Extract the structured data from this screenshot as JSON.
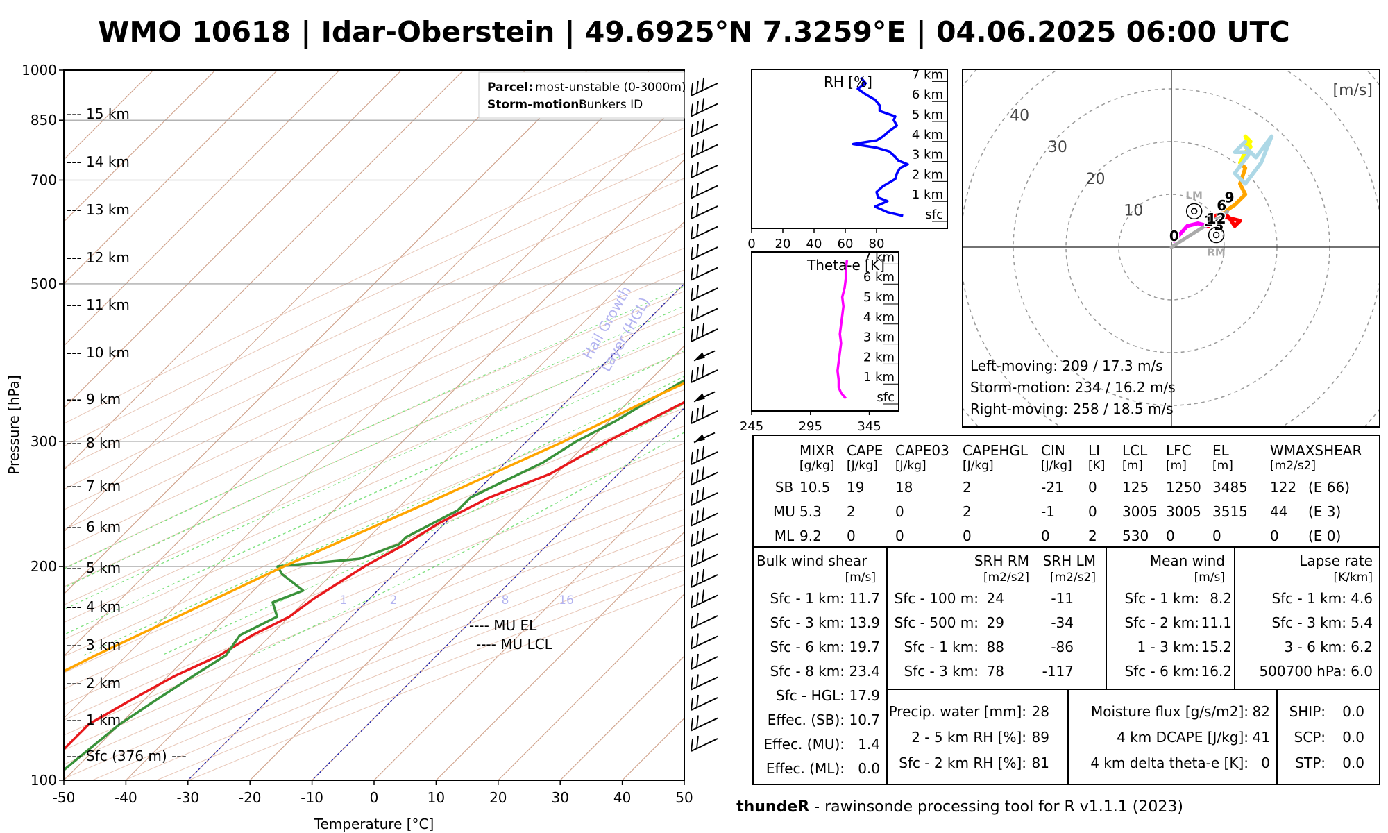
{
  "title": "WMO 10618 | Idar-Oberstein | 49.6925°N 7.3259°E | 04.06.2025 06:00 UTC",
  "footer": {
    "brand": "thundeR",
    "rest": " - rawinsonde processing tool for R v1.1.1 (2023)"
  },
  "skewt": {
    "xlabel": "Temperature [°C]",
    "ylabel": "Pressure [hPa]",
    "x_ticks": [
      -50,
      -40,
      -30,
      -20,
      -10,
      0,
      10,
      20,
      30,
      40,
      50
    ],
    "p_ticks": [
      100,
      200,
      300,
      500,
      700,
      850,
      1000
    ],
    "mixing_ratio_labels": [
      "1",
      "2",
      "8",
      "16"
    ],
    "hgl_label_1": "Hail Growth",
    "hgl_label_2": "Layer (HGL)",
    "height_labels": [
      "--- 15 km",
      "--- 14 km",
      "--- 13 km",
      "--- 12 km",
      "--- 11 km",
      "--- 10 km",
      "--- 9 km",
      "--- 8 km",
      "--- 7 km",
      "--- 6 km",
      "--- 5 km",
      "--- 4 km",
      "--- 3 km",
      "--- 2 km",
      "--- 1 km",
      "--- Sfc (376 m) ---"
    ],
    "mu_el_label": "---- MU EL",
    "mu_lcl_label": "---- MU LCL",
    "legend": {
      "parcel_key": "Parcel:",
      "parcel_val": "most-unstable (0-3000m)",
      "storm_key": "Storm-motion:",
      "storm_val": "Bunkers ID"
    }
  },
  "chart_data": [
    {
      "type": "line",
      "name": "skew-T log-P",
      "xlim": [
        -50,
        50
      ],
      "ylim": [
        1000,
        100
      ],
      "yscale": "log",
      "series": [
        {
          "name": "Temperature",
          "color": "#e8191c",
          "points": [
            [
              1000,
              17.5
            ],
            [
              950,
              16
            ],
            [
              900,
              15
            ],
            [
              850,
              14
            ],
            [
              800,
              12
            ],
            [
              750,
              11
            ],
            [
              700,
              12.5
            ],
            [
              650,
              12
            ],
            [
              600,
              12
            ],
            [
              550,
              8
            ],
            [
              500,
              4
            ],
            [
              460,
              0
            ],
            [
              420,
              -3
            ],
            [
              380,
              -8
            ],
            [
              340,
              -11
            ],
            [
              300,
              -17
            ],
            [
              270,
              -21
            ],
            [
              250,
              -27
            ],
            [
              230,
              -31
            ],
            [
              215,
              -33
            ],
            [
              200,
              -36
            ],
            [
              180,
              -39
            ],
            [
              170,
              -40
            ],
            [
              160,
              -43
            ],
            [
              150,
              -45
            ],
            [
              140,
              -49
            ],
            [
              130,
              -52
            ],
            [
              120,
              -55
            ],
            [
              110,
              -55
            ],
            [
              100,
              -55
            ]
          ]
        },
        {
          "name": "Dewpoint",
          "color": "#3a923a",
          "points": [
            [
              1000,
              13
            ],
            [
              950,
              10
            ],
            [
              900,
              9
            ],
            [
              850,
              8
            ],
            [
              800,
              6
            ],
            [
              750,
              5
            ],
            [
              700,
              5
            ],
            [
              650,
              2
            ],
            [
              600,
              -4
            ],
            [
              580,
              -9
            ],
            [
              550,
              -6
            ],
            [
              500,
              -4
            ],
            [
              470,
              -4
            ],
            [
              440,
              -6
            ],
            [
              420,
              -11
            ],
            [
              400,
              -10
            ],
            [
              380,
              -13
            ],
            [
              360,
              -15
            ],
            [
              340,
              -17
            ],
            [
              320,
              -19
            ],
            [
              300,
              -22
            ],
            [
              280,
              -24
            ],
            [
              260,
              -28
            ],
            [
              250,
              -30
            ],
            [
              240,
              -30
            ],
            [
              220,
              -34
            ],
            [
              215,
              -34
            ],
            [
              205,
              -38
            ],
            [
              200,
              -50
            ],
            [
              195,
              -48
            ],
            [
              185,
              -42
            ],
            [
              178,
              -45
            ],
            [
              170,
              -42
            ],
            [
              160,
              -45
            ],
            [
              150,
              -44
            ],
            [
              140,
              -46
            ],
            [
              130,
              -48
            ],
            [
              120,
              -50
            ],
            [
              110,
              -51
            ],
            [
              100,
              -52
            ]
          ]
        },
        {
          "name": "Parcel",
          "color": "#e8191c",
          "dashed": true,
          "points": [
            [
              1000,
              19
            ],
            [
              900,
              17
            ],
            [
              850,
              15.5
            ],
            [
              800,
              14
            ],
            [
              750,
              12.5
            ],
            [
              700,
              12
            ],
            [
              650,
              12
            ],
            [
              600,
              14.5
            ],
            [
              550,
              11
            ],
            [
              500,
              6
            ]
          ]
        },
        {
          "name": "Virtual temperature",
          "color": "#ffa500",
          "points": [
            [
              600,
              12
            ],
            [
              550,
              8.5
            ],
            [
              500,
              3.5
            ],
            [
              450,
              -2
            ],
            [
              400,
              -8
            ],
            [
              350,
              -16
            ],
            [
              300,
              -24
            ],
            [
              250,
              -35
            ],
            [
              200,
              -49
            ],
            [
              150,
              -65
            ],
            [
              100,
              -85
            ]
          ]
        }
      ]
    },
    {
      "type": "line",
      "name": "RH profile",
      "xlabel": "RH [%]",
      "xlim": [
        0,
        100
      ],
      "x_ticks": [
        0,
        20,
        40,
        60,
        80
      ],
      "height_ticks": [
        "sfc",
        "1 km",
        "2 km",
        "3 km",
        "4 km",
        "5 km",
        "6 km",
        "7 km"
      ],
      "ylim_km": [
        0,
        7.5
      ],
      "series": [
        {
          "name": "RH",
          "color": "#0000ff",
          "points": [
            [
              0,
              97
            ],
            [
              0.2,
              87
            ],
            [
              0.5,
              79
            ],
            [
              0.8,
              87
            ],
            [
              1.0,
              81
            ],
            [
              1.3,
              80
            ],
            [
              1.6,
              84
            ],
            [
              2.0,
              92
            ],
            [
              2.3,
              93
            ],
            [
              2.6,
              95
            ],
            [
              2.8,
              100
            ],
            [
              3.0,
              94
            ],
            [
              3.2,
              92
            ],
            [
              3.5,
              88
            ],
            [
              3.7,
              80
            ],
            [
              3.9,
              65
            ],
            [
              4.1,
              80
            ],
            [
              4.3,
              84
            ],
            [
              4.6,
              88
            ],
            [
              4.9,
              93
            ],
            [
              5.2,
              91
            ],
            [
              5.4,
              92
            ],
            [
              5.7,
              82
            ],
            [
              6.0,
              82
            ],
            [
              6.3,
              79
            ],
            [
              6.6,
              73
            ],
            [
              6.9,
              68
            ],
            [
              7.2,
              73
            ],
            [
              7.5,
              70
            ]
          ]
        }
      ]
    },
    {
      "type": "line",
      "name": "Theta-e profile",
      "xlabel": "Theta-e [K]",
      "xlim": [
        245,
        370
      ],
      "x_ticks": [
        245,
        295,
        345
      ],
      "height_ticks": [
        "sfc",
        "1 km",
        "2 km",
        "3 km",
        "4 km",
        "5 km",
        "6 km",
        "7 km"
      ],
      "ylim_km": [
        0,
        7.5
      ],
      "series": [
        {
          "name": "Theta-e",
          "color": "#ff00ff",
          "points": [
            [
              0,
              325
            ],
            [
              0.3,
              321
            ],
            [
              0.6,
              319
            ],
            [
              1.0,
              319
            ],
            [
              1.5,
              318
            ],
            [
              2.0,
              319
            ],
            [
              2.5,
              320
            ],
            [
              3.0,
              321
            ],
            [
              3.5,
              320
            ],
            [
              4.0,
              321
            ],
            [
              4.5,
              322
            ],
            [
              5.0,
              323
            ],
            [
              5.5,
              322
            ],
            [
              6.0,
              324
            ],
            [
              6.5,
              325
            ],
            [
              7.0,
              325
            ],
            [
              7.5,
              326
            ]
          ]
        }
      ]
    },
    {
      "type": "line",
      "name": "Hodograph",
      "unit_label": "[m/s]",
      "ring_labels": [
        "10",
        "20",
        "30",
        "40"
      ],
      "series": [
        {
          "name": "0-1 km",
          "color": "#ff00ff",
          "points": [
            [
              0.5,
              1.2
            ],
            [
              3,
              4
            ],
            [
              5,
              4.5
            ],
            [
              7,
              4
            ]
          ]
        },
        {
          "name": "1-3 km",
          "color": "#ff0000",
          "points": [
            [
              7,
              4
            ],
            [
              8.5,
              6
            ],
            [
              10,
              6.5
            ],
            [
              11,
              5.5
            ],
            [
              13,
              5
            ],
            [
              12,
              4
            ],
            [
              11,
              5.5
            ],
            [
              9,
              6
            ]
          ]
        },
        {
          "name": "3-6 km",
          "color": "#ffa500",
          "points": [
            [
              9,
              6
            ],
            [
              12,
              8
            ],
            [
              14,
              10
            ],
            [
              13,
              12
            ],
            [
              14,
              15
            ],
            [
              13,
              16
            ]
          ]
        },
        {
          "name": "6-9 km",
          "color": "#ffff00",
          "points": [
            [
              13,
              16
            ],
            [
              14,
              18
            ],
            [
              15,
              19
            ],
            [
              14,
              21
            ],
            [
              15,
              20
            ],
            [
              14,
              19
            ]
          ]
        },
        {
          "name": "9-12 km",
          "color": "#add8e6",
          "points": [
            [
              14,
              19
            ],
            [
              16,
              17
            ],
            [
              19,
              21
            ],
            [
              17,
              16
            ],
            [
              14,
              12
            ],
            [
              12,
              14
            ],
            [
              15,
              18
            ],
            [
              12,
              18
            ],
            [
              14,
              20
            ]
          ]
        },
        {
          "name": "Storm motion vector",
          "color": "#aaaaaa",
          "points": [
            [
              0,
              0
            ],
            [
              10.6,
              6.7
            ]
          ]
        }
      ],
      "points_labels": [
        {
          "label": "0",
          "u": 0.5,
          "v": 1.2
        },
        {
          "label": "1",
          "u": 7,
          "v": 4
        },
        {
          "label": "3",
          "u": 9,
          "v": 3.2
        },
        {
          "label": "6",
          "u": 9.5,
          "v": 7
        },
        {
          "label": "9",
          "u": 11,
          "v": 8.5
        },
        {
          "label": "12",
          "u": 8.5,
          "v": 4.5
        }
      ],
      "markers": [
        {
          "label": "LM",
          "u": 4.3,
          "v": 6.8
        },
        {
          "label": "RM",
          "u": 8.5,
          "v": 2.3
        }
      ],
      "annotations": [
        "Left-moving: 209 / 17.3 m/s",
        "Storm-motion: 234 / 16.2 m/s",
        "Right-moving: 258 / 18.5 m/s"
      ]
    }
  ],
  "params_table": {
    "headers": [
      {
        "t": "MIXR",
        "u": "[g/kg]"
      },
      {
        "t": "CAPE",
        "u": "[J/kg]"
      },
      {
        "t": "CAPE03",
        "u": "[J/kg]"
      },
      {
        "t": "CAPEHGL",
        "u": "[J/kg]"
      },
      {
        "t": "CIN",
        "u": "[J/kg]"
      },
      {
        "t": "LI",
        "u": "[K]"
      },
      {
        "t": "LCL",
        "u": "[m]"
      },
      {
        "t": "LFC",
        "u": "[m]"
      },
      {
        "t": "EL",
        "u": "[m]"
      },
      {
        "t": "WMAXSHEAR",
        "u": "[m2/s2]"
      }
    ],
    "rows": [
      {
        "label": "SB",
        "values": [
          "10.5",
          "19",
          "18",
          "2",
          "-21",
          "0",
          "125",
          "1250",
          "3485",
          "122",
          "(E 66)"
        ]
      },
      {
        "label": "MU",
        "values": [
          "5.3",
          "2",
          "0",
          "2",
          "-1",
          "0",
          "3005",
          "3005",
          "3515",
          "44",
          "(E 3)"
        ]
      },
      {
        "label": "ML",
        "values": [
          "9.2",
          "0",
          "0",
          "0",
          "0",
          "2",
          "530",
          "0",
          "0",
          "0",
          "(E 0)"
        ]
      }
    ]
  },
  "bulk_shear": {
    "title": "Bulk wind shear",
    "unit": "[m/s]",
    "rows": [
      {
        "k": "Sfc - 1 km:",
        "v": "11.7"
      },
      {
        "k": "Sfc - 3 km:",
        "v": "13.9"
      },
      {
        "k": "Sfc - 6 km:",
        "v": "19.7"
      },
      {
        "k": "Sfc - 8 km:",
        "v": "23.4"
      },
      {
        "k": "Sfc - HGL:",
        "v": "17.9"
      },
      {
        "k": "Effec. (SB):",
        "v": "10.7"
      },
      {
        "k": "Effec. (MU):",
        "v": "1.4"
      },
      {
        "k": "Effec. (ML):",
        "v": "0.0"
      }
    ]
  },
  "srh": {
    "title_rm": "SRH RM",
    "title_lm": "SRH LM",
    "unit_rm": "[m2/s2]",
    "unit_lm": "[m2/s2]",
    "rows": [
      {
        "k": "Sfc - 100 m:",
        "rm": "24",
        "lm": "-11"
      },
      {
        "k": "Sfc - 500 m:",
        "rm": "29",
        "lm": "-34"
      },
      {
        "k": "Sfc - 1 km:",
        "rm": "88",
        "lm": "-86"
      },
      {
        "k": "Sfc - 3 km:",
        "rm": "78",
        "lm": "-117"
      }
    ]
  },
  "mean_wind": {
    "title": "Mean wind",
    "unit": "[m/s]",
    "rows": [
      {
        "k": "Sfc - 1 km:",
        "v": "8.2"
      },
      {
        "k": "Sfc - 2 km:",
        "v": "11.1"
      },
      {
        "k": "1 - 3 km:",
        "v": "15.2"
      },
      {
        "k": "Sfc - 6 km:",
        "v": "16.2"
      }
    ]
  },
  "lapse_rate": {
    "title": "Lapse rate",
    "unit": "[K/km]",
    "rows": [
      {
        "k": "Sfc - 1 km:",
        "v": "4.6"
      },
      {
        "k": "Sfc - 3 km:",
        "v": "5.4"
      },
      {
        "k": "3 - 6 km:",
        "v": "6.2"
      },
      {
        "k": "500700 hPa:",
        "v": "6.0"
      }
    ]
  },
  "moisture": {
    "rows": [
      {
        "k": "Precip. water [mm]:",
        "v": "28"
      },
      {
        "k": "2 - 5 km RH [%]:",
        "v": "89"
      },
      {
        "k": "Sfc - 2 km RH [%]:",
        "v": "81"
      }
    ]
  },
  "flux": {
    "rows": [
      {
        "k": "Moisture flux [g/s/m2]:",
        "v": "82"
      },
      {
        "k": "4 km DCAPE [J/kg]:",
        "v": "41"
      },
      {
        "k": "4 km delta theta-e [K]:",
        "v": "0"
      }
    ]
  },
  "composites": {
    "rows": [
      {
        "k": "SHIP:",
        "v": "0.0"
      },
      {
        "k": "SCP:",
        "v": "0.0"
      },
      {
        "k": "STP:",
        "v": "0.0"
      }
    ]
  }
}
